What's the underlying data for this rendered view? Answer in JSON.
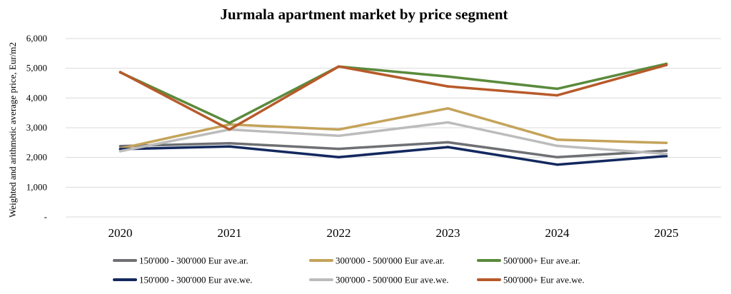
{
  "chart_data": {
    "type": "line",
    "title": "Jurmala apartment market by price segment",
    "ylabel": "Weighted and arithmetic average price, Eur/m2",
    "xlabel": "",
    "x": [
      "2020",
      "2021",
      "2022",
      "2023",
      "2024",
      "2025"
    ],
    "ylim": [
      0,
      6000
    ],
    "y_ticks": [
      {
        "value": 0,
        "label": "-"
      },
      {
        "value": 1000,
        "label": "1,000"
      },
      {
        "value": 2000,
        "label": "2,000"
      },
      {
        "value": 3000,
        "label": "3,000"
      },
      {
        "value": 4000,
        "label": "4,000"
      },
      {
        "value": 5000,
        "label": "5,000"
      },
      {
        "value": 6000,
        "label": "6,000"
      }
    ],
    "grid": true,
    "legend_position": "bottom",
    "series": [
      {
        "name": "150'000 - 300'000 Eur ave.ar.",
        "color": "#6e7073",
        "values": [
          2380,
          2480,
          2290,
          2510,
          2010,
          2230
        ]
      },
      {
        "name": "300'000 - 500'000 Eur ave.ar.",
        "color": "#c4a35a",
        "values": [
          2300,
          3110,
          2940,
          3650,
          2600,
          2490
        ]
      },
      {
        "name": "500'000+ Eur ave.ar.",
        "color": "#5a8a3c",
        "values": [
          4860,
          3160,
          5060,
          4720,
          4310,
          5150
        ]
      },
      {
        "name": "150'000 - 300'000 Eur ave.we.",
        "color": "#13285e",
        "values": [
          2280,
          2370,
          2010,
          2350,
          1760,
          2050
        ]
      },
      {
        "name": "300'000 - 500'000 Eur ave.we.",
        "color": "#bcbcbc",
        "values": [
          2210,
          2940,
          2730,
          3180,
          2390,
          2120
        ]
      },
      {
        "name": "500'000+ Eur ave.we.",
        "color": "#b85a2a",
        "values": [
          4870,
          2940,
          5060,
          4390,
          4090,
          5110
        ]
      }
    ]
  }
}
